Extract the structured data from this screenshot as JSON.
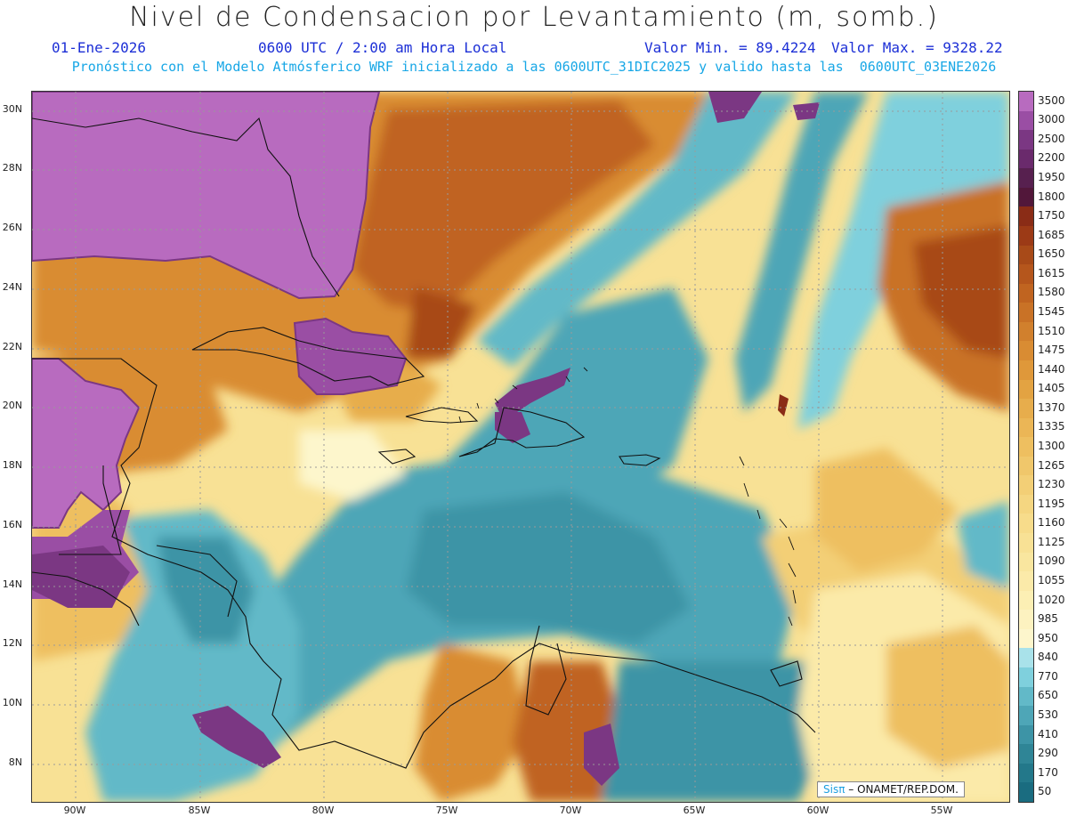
{
  "header": {
    "title": "Nivel de Condensacion por Levantamiento (m, somb.)",
    "date": "01-Ene-2026",
    "time": "0600 UTC / 2:00 am Hora Local",
    "min_value": "Valor Min. = 89.4224",
    "max_value": "Valor Max. = 9328.22",
    "forecast_info": "Pronóstico con el Modelo Atmósferico WRF inicializado a las 0600UTC_31DIC2025 y valido hasta las  0600UTC_03ENE2026"
  },
  "map": {
    "lat_labels": [
      "30N",
      "28N",
      "26N",
      "24N",
      "22N",
      "20N",
      "18N",
      "16N",
      "14N",
      "12N",
      "10N",
      "8N"
    ],
    "lon_labels": [
      "90W",
      "85W",
      "80W",
      "75W",
      "70W",
      "65W",
      "60W",
      "55W"
    ],
    "credit_logo": "Sisπ",
    "credit_text": "– ONAMET/REP.DOM."
  },
  "legend": {
    "levels": [
      "3500",
      "3000",
      "2500",
      "2200",
      "1950",
      "1800",
      "1750",
      "1685",
      "1650",
      "1615",
      "1580",
      "1545",
      "1510",
      "1475",
      "1440",
      "1405",
      "1370",
      "1335",
      "1300",
      "1265",
      "1230",
      "1195",
      "1160",
      "1125",
      "1090",
      "1055",
      "1020",
      "985",
      "950",
      "840",
      "770",
      "650",
      "530",
      "410",
      "290",
      "170",
      "50"
    ],
    "colors": [
      "#b86bbf",
      "#9a4ea4",
      "#7b3783",
      "#6a2a6c",
      "#57204f",
      "#52173a",
      "#8a2c16",
      "#9c3a16",
      "#a84a18",
      "#b5561c",
      "#c06420",
      "#c97226",
      "#d1802d",
      "#d98c33",
      "#df983a",
      "#e3a342",
      "#e7ad4c",
      "#ebb656",
      "#eebf60",
      "#f0c76b",
      "#f3cf76",
      "#f5d681",
      "#f7dc8b",
      "#f8e195",
      "#f9e69f",
      "#fbeaa9",
      "#fcefb4",
      "#fdf2c0",
      "#fdf6cc",
      "#a9e2ea",
      "#7fd0dd",
      "#62b9c8",
      "#4ea6b7",
      "#3d94a6",
      "#2f8596",
      "#23788a",
      "#1a6c80"
    ]
  }
}
